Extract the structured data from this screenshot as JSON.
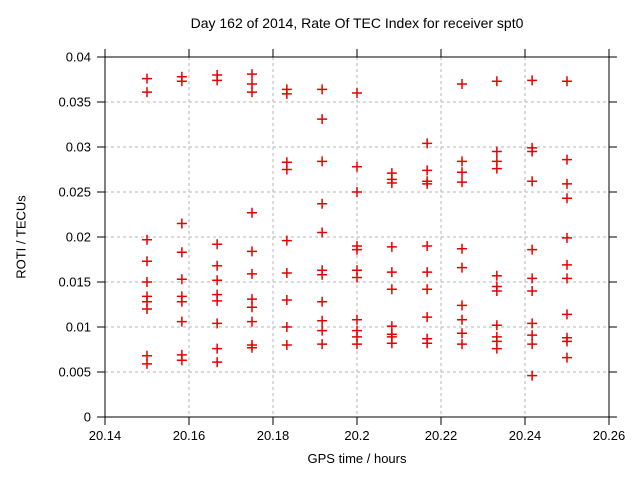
{
  "page_background": "#ffffff",
  "chart_data": {
    "type": "scatter",
    "title": "Day 162 of 2014, Rate Of TEC Index for receiver spt0",
    "xlabel": "GPS time / hours",
    "ylabel": "ROTI / TECUs",
    "xlim": [
      20.14,
      20.26
    ],
    "ylim": [
      0,
      0.04
    ],
    "xticks": [
      20.14,
      20.16,
      20.18,
      20.2,
      20.22,
      20.24,
      20.26
    ],
    "xtick_labels": [
      "20.14",
      "20.16",
      "20.18",
      "20.2",
      "20.22",
      "20.24",
      "20.26"
    ],
    "yticks": [
      0,
      0.005,
      0.01,
      0.015,
      0.02,
      0.025,
      0.03,
      0.035,
      0.04
    ],
    "ytick_labels": [
      "0",
      "0.005",
      "0.01",
      "0.015",
      "0.02",
      "0.025",
      "0.03",
      "0.035",
      "0.04"
    ],
    "grid": true,
    "legend": "none",
    "marker": {
      "shape": "plus",
      "color": "#e60000",
      "size": 10
    },
    "grid_color": "#b4b4b4",
    "axis_color": "#000000",
    "series": [
      {
        "name": "ROTI",
        "columns": [
          {
            "x": 20.15,
            "y": [
              0.0376,
              0.0361,
              0.0197,
              0.0173,
              0.015,
              0.0134,
              0.0128,
              0.012,
              0.0068,
              0.0059
            ]
          },
          {
            "x": 20.1583,
            "y": [
              0.0378,
              0.0373,
              0.0215,
              0.0183,
              0.0153,
              0.0134,
              0.0128,
              0.0106,
              0.0069,
              0.0063
            ]
          },
          {
            "x": 20.1667,
            "y": [
              0.038,
              0.0374,
              0.0192,
              0.0168,
              0.0152,
              0.0136,
              0.0129,
              0.0104,
              0.0076,
              0.0061
            ]
          },
          {
            "x": 20.175,
            "y": [
              0.0381,
              0.037,
              0.0361,
              0.0227,
              0.0184,
              0.0159,
              0.0131,
              0.0122,
              0.0106,
              0.008,
              0.0077
            ]
          },
          {
            "x": 20.1833,
            "y": [
              0.0364,
              0.0359,
              0.0283,
              0.0275,
              0.0196,
              0.016,
              0.013,
              0.01,
              0.008
            ]
          },
          {
            "x": 20.1917,
            "y": [
              0.0364,
              0.0331,
              0.0284,
              0.0237,
              0.0205,
              0.0163,
              0.0158,
              0.0128,
              0.0107,
              0.0096,
              0.0081
            ]
          },
          {
            "x": 20.2,
            "y": [
              0.036,
              0.0278,
              0.025,
              0.019,
              0.0186,
              0.0163,
              0.0155,
              0.0108,
              0.0096,
              0.0089,
              0.0081
            ]
          },
          {
            "x": 20.2083,
            "y": [
              0.0271,
              0.0264,
              0.026,
              0.0189,
              0.0161,
              0.0142,
              0.0101,
              0.0092,
              0.0089,
              0.0082
            ]
          },
          {
            "x": 20.2167,
            "y": [
              0.0304,
              0.0274,
              0.0262,
              0.0259,
              0.019,
              0.0161,
              0.0142,
              0.0111,
              0.0087,
              0.0082
            ]
          },
          {
            "x": 20.225,
            "y": [
              0.037,
              0.0284,
              0.0272,
              0.0261,
              0.0187,
              0.0166,
              0.0124,
              0.0108,
              0.0093,
              0.0081
            ]
          },
          {
            "x": 20.2333,
            "y": [
              0.0373,
              0.0295,
              0.0284,
              0.0276,
              0.0157,
              0.0145,
              0.014,
              0.0102,
              0.0089,
              0.0084,
              0.0076
            ]
          },
          {
            "x": 20.2417,
            "y": [
              0.0374,
              0.0299,
              0.0295,
              0.0262,
              0.0186,
              0.0154,
              0.014,
              0.0104,
              0.0091,
              0.0081,
              0.0046
            ]
          },
          {
            "x": 20.25,
            "y": [
              0.0373,
              0.0286,
              0.0259,
              0.0243,
              0.0199,
              0.0169,
              0.0154,
              0.0114,
              0.0088,
              0.0084,
              0.0066
            ]
          }
        ]
      }
    ]
  }
}
